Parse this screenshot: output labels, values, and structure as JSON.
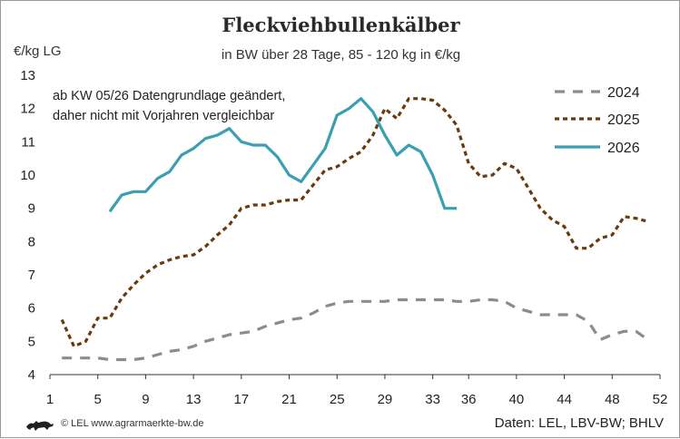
{
  "header": {
    "title": "Fleckviehbullenkälber",
    "subtitle": "in BW über 28 Tage, 85 - 120 kg in €/kg",
    "ylabel": "€/kg LG"
  },
  "note": {
    "line1": "ab KW 05/26 Datengrundlage geändert,",
    "line2": "daher nicht mit Vorjahren vergleichbar"
  },
  "footer": {
    "logo_icon": "lion-emblem-icon",
    "copyright": "© LEL www.agrarmaerkte-bw.de",
    "source": "Daten: LEL, LBV-BW; BHLV"
  },
  "colors": {
    "s2024": "#8c8c8c",
    "s2025": "#6b3a0c",
    "s2026": "#3a9fb0",
    "axis": "#333333"
  },
  "chart_data": {
    "type": "line",
    "xlim": [
      1,
      52
    ],
    "ylim": [
      4,
      13
    ],
    "xticks": [
      1,
      5,
      9,
      13,
      17,
      21,
      25,
      29,
      33,
      36,
      40,
      44,
      48,
      52
    ],
    "yticks": [
      4,
      5,
      6,
      7,
      8,
      9,
      10,
      11,
      12,
      13
    ],
    "grid": false,
    "legend_position": "top-right",
    "series": [
      {
        "name": "2024",
        "x": [
          2,
          3,
          4,
          5,
          6,
          7,
          8,
          9,
          10,
          11,
          12,
          13,
          14,
          15,
          16,
          17,
          18,
          19,
          20,
          21,
          22,
          23,
          24,
          25,
          26,
          27,
          28,
          29,
          30,
          31,
          32,
          33,
          34,
          35,
          36,
          37,
          38,
          39,
          40,
          41,
          42,
          43,
          44,
          45,
          46,
          47,
          48,
          49,
          50,
          51
        ],
        "y": [
          4.5,
          4.5,
          4.5,
          4.5,
          4.45,
          4.45,
          4.45,
          4.5,
          4.6,
          4.7,
          4.75,
          4.85,
          5.0,
          5.1,
          5.2,
          5.25,
          5.3,
          5.45,
          5.55,
          5.65,
          5.7,
          5.85,
          6.05,
          6.15,
          6.2,
          6.2,
          6.2,
          6.2,
          6.25,
          6.25,
          6.25,
          6.25,
          6.25,
          6.2,
          6.2,
          6.25,
          6.25,
          6.2,
          6.0,
          5.9,
          5.8,
          5.8,
          5.8,
          5.8,
          5.6,
          5.05,
          5.2,
          5.3,
          5.3,
          5.05
        ]
      },
      {
        "name": "2025",
        "x": [
          2,
          3,
          4,
          5,
          6,
          7,
          8,
          9,
          10,
          11,
          12,
          13,
          14,
          15,
          16,
          17,
          18,
          19,
          20,
          21,
          22,
          23,
          24,
          25,
          26,
          27,
          28,
          29,
          30,
          31,
          32,
          33,
          34,
          35,
          36,
          37,
          38,
          39,
          40,
          41,
          42,
          43,
          44,
          45,
          46,
          47,
          48,
          49,
          50,
          51
        ],
        "y": [
          5.65,
          4.85,
          5.0,
          5.7,
          5.7,
          6.3,
          6.7,
          7.05,
          7.3,
          7.45,
          7.55,
          7.6,
          7.85,
          8.2,
          8.5,
          9.0,
          9.1,
          9.1,
          9.2,
          9.25,
          9.25,
          9.7,
          10.15,
          10.25,
          10.5,
          10.7,
          11.2,
          12.0,
          11.7,
          12.3,
          12.3,
          12.25,
          11.95,
          11.5,
          10.35,
          9.95,
          10.0,
          10.35,
          10.2,
          9.6,
          9.0,
          8.65,
          8.45,
          7.8,
          7.8,
          8.1,
          8.2,
          8.75,
          8.7,
          8.6
        ]
      },
      {
        "name": "2026",
        "x": [
          6,
          7,
          8,
          9,
          10,
          11,
          12,
          13,
          14,
          15,
          16,
          17,
          18,
          19,
          20,
          21,
          22,
          23,
          24,
          25,
          26,
          27,
          28,
          29,
          30,
          31,
          32,
          33,
          34,
          35
        ],
        "y": [
          8.9,
          9.4,
          9.5,
          9.5,
          9.9,
          10.1,
          10.6,
          10.8,
          11.1,
          11.2,
          11.4,
          11.0,
          10.9,
          10.9,
          10.55,
          10.0,
          9.8,
          10.3,
          10.8,
          11.8,
          12.0,
          12.3,
          11.9,
          11.2,
          10.6,
          10.9,
          10.7,
          10.0,
          9.0,
          9.0
        ]
      }
    ]
  }
}
